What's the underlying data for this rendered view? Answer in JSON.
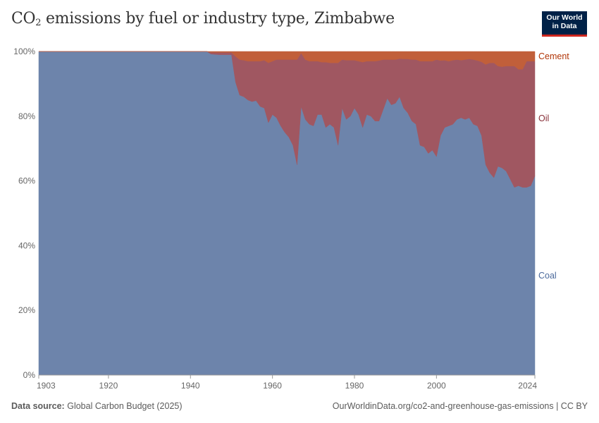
{
  "header": {
    "title_prefix": "CO",
    "title_sub": "2",
    "title_suffix": " emissions by fuel or industry type, Zimbabwe",
    "logo_line1": "Our World",
    "logo_line2": "in Data"
  },
  "footer": {
    "source_label": "Data source:",
    "source_value": "Global Carbon Budget (2025)",
    "url": "OurWorldinData.org/co2-and-greenhouse-gas-emissions | CC BY"
  },
  "chart_data": {
    "type": "area",
    "stacked": true,
    "relative": true,
    "title": "CO₂ emissions by fuel or industry type, Zimbabwe",
    "xlabel": "",
    "ylabel": "",
    "xlim": [
      1903,
      2024
    ],
    "ylim": [
      0,
      100
    ],
    "x_ticks": [
      "1903",
      "1920",
      "1940",
      "1960",
      "1980",
      "2000",
      "2024"
    ],
    "y_ticks": [
      "0%",
      "20%",
      "40%",
      "60%",
      "80%",
      "100%"
    ],
    "grid": "horizontal-dashed",
    "legend": "right (inline labels)",
    "colors": {
      "Coal": "#6d84ab",
      "Oil": "#a05761",
      "Cement": "#c15f3a"
    },
    "label_colors": {
      "Coal": "#4c6a9c",
      "Oil": "#883039",
      "Cement": "#b13507"
    },
    "x": [
      1903,
      1944,
      1945,
      1947,
      1949,
      1950,
      1951,
      1952,
      1953,
      1954,
      1955,
      1956,
      1957,
      1958,
      1959,
      1960,
      1961,
      1962,
      1963,
      1964,
      1965,
      1966,
      1967,
      1968,
      1969,
      1970,
      1971,
      1972,
      1973,
      1974,
      1975,
      1976,
      1977,
      1978,
      1979,
      1980,
      1981,
      1982,
      1983,
      1984,
      1985,
      1986,
      1987,
      1988,
      1989,
      1990,
      1991,
      1992,
      1993,
      1994,
      1995,
      1996,
      1997,
      1998,
      1999,
      2000,
      2001,
      2002,
      2003,
      2004,
      2005,
      2006,
      2007,
      2008,
      2009,
      2010,
      2011,
      2012,
      2013,
      2014,
      2015,
      2016,
      2017,
      2018,
      2019,
      2020,
      2021,
      2022,
      2023,
      2024
    ],
    "series": [
      {
        "name": "Coal",
        "values": [
          100,
          100,
          99.2,
          99,
          99,
          99,
          90.5,
          86.5,
          86,
          85,
          84.5,
          84.8,
          83,
          82.5,
          78,
          80.5,
          79.5,
          77,
          75,
          73.5,
          71,
          65,
          83,
          79,
          77.5,
          77,
          80.5,
          80.5,
          76.5,
          77.5,
          76.5,
          71,
          82.5,
          79,
          80,
          82.5,
          80.5,
          76.5,
          80.5,
          80,
          78.5,
          78.5,
          82,
          85.5,
          83.5,
          84,
          86,
          82.5,
          81,
          78.5,
          77.5,
          71,
          70.5,
          68.5,
          69.5,
          67.5,
          74,
          76.5,
          77,
          77.5,
          79,
          79.5,
          79,
          79.5,
          77.5,
          77,
          74,
          65,
          62.5,
          61,
          64.5,
          64,
          63,
          60.5,
          58,
          58.5,
          58,
          58,
          58.5,
          61.5
        ]
      },
      {
        "name": "Oil",
        "values": [
          0,
          0,
          0.5,
          0.7,
          0.7,
          0.7,
          8,
          11,
          11.3,
          12,
          12.5,
          12.2,
          14,
          14.8,
          18.5,
          16.5,
          18,
          20.5,
          22.5,
          24,
          26.5,
          32.5,
          16.5,
          18.5,
          19.5,
          20,
          16.5,
          16.2,
          20.2,
          19,
          20,
          25.5,
          15,
          18.3,
          17.3,
          14.8,
          16.5,
          20.2,
          16.5,
          17,
          18.5,
          18.7,
          15.5,
          12,
          14,
          13.5,
          11.8,
          15.2,
          16.7,
          19,
          20,
          26,
          26.5,
          28.5,
          27.5,
          30,
          23.2,
          20.8,
          20,
          19.8,
          18.5,
          17.8,
          18.5,
          18.2,
          20,
          20.2,
          22.8,
          31,
          34,
          35.5,
          31,
          31.3,
          32.5,
          35,
          37.5,
          36,
          36.5,
          39,
          38.5,
          35.5
        ]
      },
      {
        "name": "Cement",
        "values": [
          0,
          0,
          0.3,
          0.3,
          0.3,
          0.3,
          1.5,
          2.5,
          2.7,
          3,
          3,
          3,
          3,
          2.7,
          3.5,
          3,
          2.5,
          2.5,
          2.5,
          2.5,
          2.5,
          2.5,
          0.5,
          2.5,
          3,
          3,
          3,
          3.3,
          3.3,
          3.5,
          3.5,
          3.5,
          2.5,
          2.7,
          2.7,
          2.7,
          3,
          3.3,
          3,
          3,
          3,
          2.8,
          2.5,
          2.5,
          2.5,
          2.5,
          2.2,
          2.3,
          2.3,
          2.5,
          2.5,
          3,
          3,
          3,
          3,
          2.5,
          2.8,
          2.7,
          3,
          2.7,
          2.5,
          2.7,
          2.5,
          2.3,
          2.5,
          2.8,
          3.2,
          4,
          3.5,
          3.5,
          4.5,
          4.7,
          4.5,
          4.5,
          4.5,
          5.5,
          5.5,
          3,
          3,
          3
        ]
      }
    ]
  }
}
